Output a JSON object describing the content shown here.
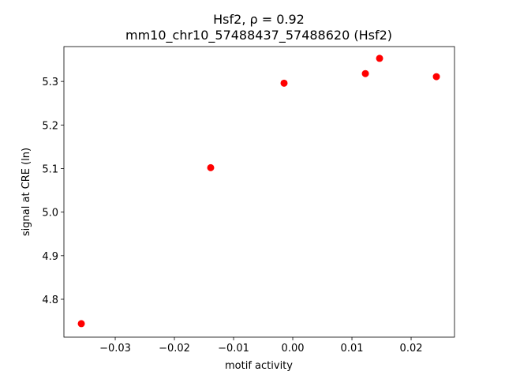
{
  "chart_data": {
    "type": "scatter",
    "title": [
      "Hsf2, ρ = 0.92",
      "mm10_chr10_57488437_57488620 (Hsf2)"
    ],
    "x_label": "motif activity",
    "y_label": "signal at CRE (ln)",
    "color": "#ff0000",
    "x": [
      -0.03573,
      -0.01387,
      -0.00147,
      0.01227,
      0.01467,
      0.02427
    ],
    "values": [
      4.744,
      5.102,
      5.296,
      5.318,
      5.353,
      5.311
    ],
    "xlim": [
      -0.03867,
      0.02733
    ],
    "ylim": [
      4.713,
      5.38
    ],
    "xticks": [
      {
        "value": -0.03,
        "label": "−0.03"
      },
      {
        "value": -0.02,
        "label": "−0.02"
      },
      {
        "value": -0.01,
        "label": "−0.01"
      },
      {
        "value": 0,
        "label": "0.00"
      },
      {
        "value": 0.01,
        "label": "0.01"
      },
      {
        "value": 0.02,
        "label": "0.02"
      }
    ],
    "yticks": [
      4.8,
      4.9,
      {
        "value": 5,
        "label": "5.0"
      },
      5.1,
      5.2,
      5.3
    ]
  }
}
